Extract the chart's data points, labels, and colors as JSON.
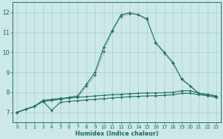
{
  "xlabel": "Humidex (Indice chaleur)",
  "bg_color": "#cce8e8",
  "grid_color": "#aacccc",
  "line_color": "#1a6b5a",
  "xlim": [
    -0.5,
    23.5
  ],
  "ylim": [
    6.5,
    12.5
  ],
  "xticks": [
    0,
    1,
    2,
    3,
    4,
    5,
    6,
    7,
    8,
    9,
    10,
    11,
    12,
    13,
    14,
    15,
    16,
    17,
    18,
    19,
    20,
    21,
    22,
    23
  ],
  "yticks": [
    7,
    8,
    9,
    10,
    11,
    12
  ],
  "line1_x": [
    0,
    1,
    2,
    3,
    4,
    5,
    6,
    7,
    8,
    9,
    10,
    11,
    12,
    13,
    14,
    15,
    16,
    17,
    18,
    19,
    20,
    21,
    22,
    23
  ],
  "line1_y": [
    7.0,
    7.15,
    7.3,
    7.55,
    7.1,
    7.5,
    7.55,
    7.58,
    7.62,
    7.65,
    7.68,
    7.72,
    7.75,
    7.78,
    7.8,
    7.82,
    7.83,
    7.85,
    7.88,
    7.95,
    7.95,
    7.88,
    7.83,
    7.75
  ],
  "line2_x": [
    0,
    1,
    2,
    3,
    4,
    5,
    6,
    7,
    8,
    9,
    10,
    11,
    12,
    13,
    14,
    15,
    16,
    17,
    18,
    19,
    20,
    21,
    22,
    23
  ],
  "line2_y": [
    7.0,
    7.15,
    7.3,
    7.6,
    7.65,
    7.7,
    7.72,
    7.75,
    7.78,
    7.82,
    7.85,
    7.88,
    7.9,
    7.93,
    7.95,
    7.97,
    7.97,
    7.98,
    8.0,
    8.08,
    8.08,
    7.95,
    7.9,
    7.82
  ],
  "line3_x": [
    0,
    1,
    2,
    3,
    4,
    5,
    6,
    7,
    8,
    9,
    10,
    11,
    12,
    13,
    14,
    15,
    16,
    17,
    18,
    19,
    20,
    21,
    22,
    23
  ],
  "line3_y": [
    7.0,
    7.15,
    7.3,
    7.55,
    7.6,
    7.65,
    7.7,
    7.75,
    8.3,
    8.85,
    10.05,
    11.05,
    11.8,
    11.92,
    11.9,
    11.7,
    10.45,
    9.95,
    9.45,
    8.65,
    8.3,
    7.9,
    7.85,
    7.75
  ],
  "line4_x": [
    0,
    1,
    2,
    3,
    4,
    5,
    6,
    7,
    8,
    9,
    10,
    11,
    12,
    13,
    14,
    15,
    16,
    17,
    18,
    19,
    20,
    21,
    22,
    23
  ],
  "line4_y": [
    7.0,
    7.15,
    7.3,
    7.55,
    7.6,
    7.65,
    7.75,
    7.82,
    8.4,
    9.0,
    10.25,
    11.1,
    11.88,
    11.98,
    11.88,
    11.65,
    10.5,
    10.0,
    9.5,
    8.68,
    8.32,
    7.95,
    7.9,
    7.8
  ]
}
